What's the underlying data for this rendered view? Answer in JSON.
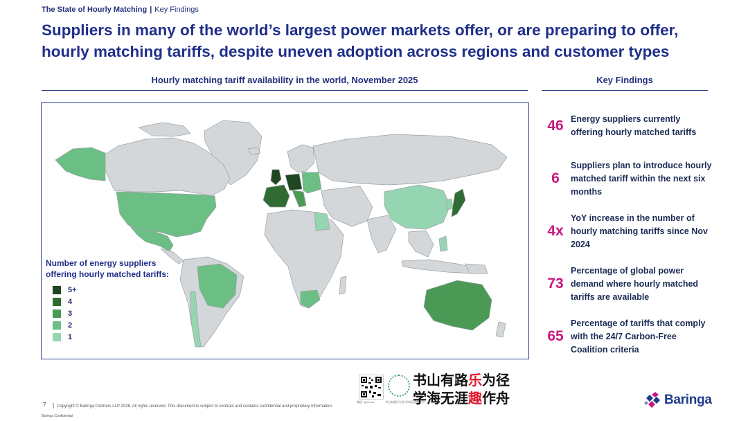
{
  "header": {
    "section": "The State of Hourly Matching",
    "separator": "|",
    "subsection": "Key Findings",
    "title": "Suppliers in many of the world’s largest power markets offer, or are preparing to offer, hourly matching tariffs, despite uneven adoption across regions and customer types"
  },
  "map": {
    "heading": "Hourly matching tariff availability in the world, November 2025",
    "legend_title": "Number of energy suppliers offering hourly matched tariffs:",
    "legend": [
      {
        "label": "5+",
        "color": "#1e4620"
      },
      {
        "label": "4",
        "color": "#2f6b33"
      },
      {
        "label": "3",
        "color": "#4a9a55"
      },
      {
        "label": "2",
        "color": "#6bbf84"
      },
      {
        "label": "1",
        "color": "#96d5b1"
      }
    ],
    "colors": {
      "land": "#d4d7d9",
      "border": "#9aa0a4",
      "sea": "#ffffff"
    }
  },
  "key_findings": {
    "heading": "Key Findings",
    "items": [
      {
        "number": "46",
        "text": "Energy suppliers currently offering hourly matched tariffs"
      },
      {
        "number": "6",
        "text": "Suppliers plan to introduce hourly matched tariff within the next six months"
      },
      {
        "number": "4x",
        "text": "YoY increase in the number of hourly matching tariffs since Nov 2024"
      },
      {
        "number": "73",
        "text": "Percentage of global power demand where hourly matched tariffs are available"
      },
      {
        "number": "65",
        "text": "Percentage of tariffs that comply with the 24/7 Carbon-Free Coalition criteria"
      }
    ],
    "accent_color": "#c8187e"
  },
  "overlay": {
    "qr_caption": "微信: sjxnmao",
    "badge_caption": "书山有路乐为径 学海无涯趣作舟",
    "line1_a": "书山有路",
    "line1_hl": "乐",
    "line1_b": "为径",
    "line2_a": "学海无涯",
    "line2_hl": "趣",
    "line2_b": "作舟"
  },
  "footer": {
    "page_number": "7",
    "copyright": "Copyright © Baringa Partners LLP 2026. All rights reserved. This document is subject to contract and contains confidential and proprietary information.",
    "confidential": "Baringa Confidential",
    "logo_text": "Baringa"
  }
}
